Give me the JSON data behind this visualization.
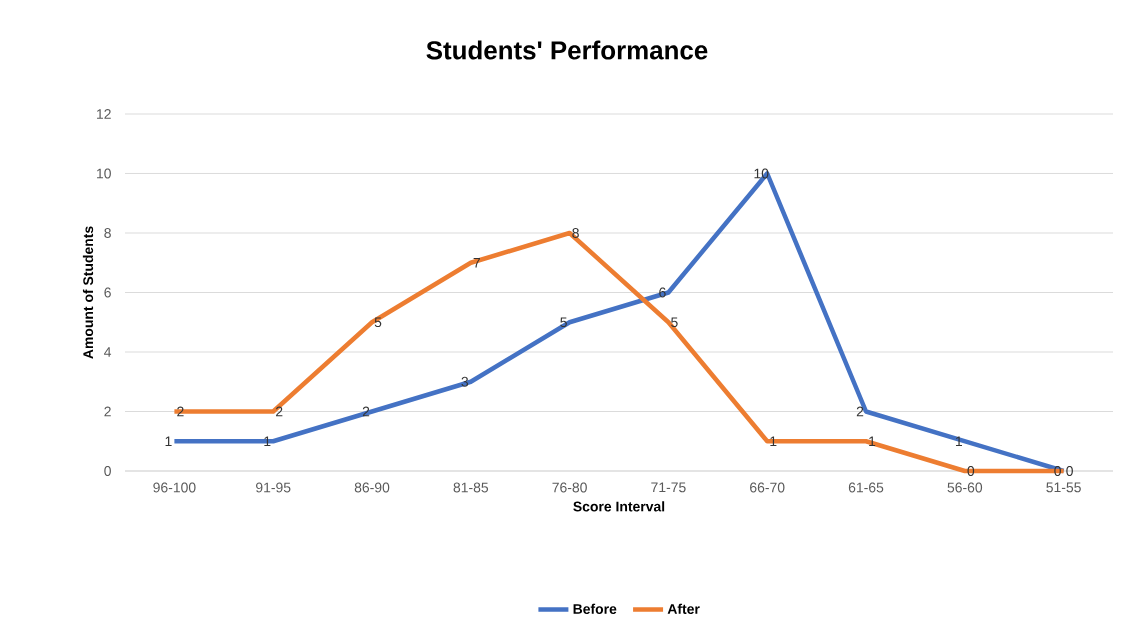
{
  "chart_data": {
    "type": "line",
    "title": "Students' Performance",
    "xlabel": "Score Interval",
    "ylabel": "Amount of Students",
    "categories": [
      "96-100",
      "91-95",
      "86-90",
      "81-85",
      "76-80",
      "71-75",
      "66-70",
      "61-65",
      "56-60",
      "51-55"
    ],
    "series": [
      {
        "name": "Before",
        "color": "#4472c4",
        "values": [
          1,
          1,
          2,
          3,
          5,
          6,
          10,
          2,
          1,
          0
        ]
      },
      {
        "name": "After",
        "color": "#ed7d31",
        "values": [
          2,
          2,
          5,
          7,
          8,
          5,
          1,
          1,
          0,
          0
        ]
      }
    ],
    "ylim": [
      0,
      12
    ],
    "yticks": [
      0,
      2,
      4,
      6,
      8,
      10,
      12
    ],
    "grid": "y",
    "legend": "bottom",
    "data_labels": true,
    "marker": "none",
    "line_style": "solid"
  }
}
